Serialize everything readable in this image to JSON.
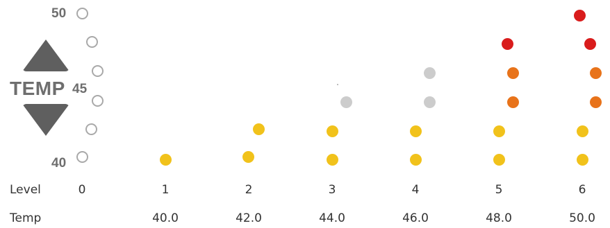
{
  "scale": {
    "top_label": "50",
    "mid_label": "45",
    "bottom_label": "40"
  },
  "temp_control": {
    "label": "TEMP",
    "up_icon": "triangle-up-icon",
    "down_icon": "triangle-down-icon",
    "arrow_color": "#5f5f5f"
  },
  "legend_rings": {
    "count": 6,
    "color": "#a9a9a9"
  },
  "colors": {
    "yellow": "#f1c21b",
    "gray": "#cccccc",
    "orange": "#e8731a",
    "red": "#d91c1c"
  },
  "level_row": {
    "label": "Level",
    "values": [
      "0",
      "1",
      "2",
      "3",
      "4",
      "5",
      "6"
    ]
  },
  "temp_row": {
    "label": "Temp",
    "values": [
      "",
      "40.0",
      "42.0",
      "44.0",
      "46.0",
      "48.0",
      "50.0"
    ]
  },
  "columns": [
    {
      "level": "0",
      "dots": []
    },
    {
      "level": "1",
      "dots": [
        "yellow"
      ]
    },
    {
      "level": "2",
      "dots": [
        "yellow",
        "yellow"
      ]
    },
    {
      "level": "3",
      "dots": [
        "yellow",
        "yellow",
        "gray"
      ]
    },
    {
      "level": "4",
      "dots": [
        "yellow",
        "yellow",
        "gray",
        "gray"
      ]
    },
    {
      "level": "5",
      "dots": [
        "yellow",
        "yellow",
        "orange",
        "orange",
        "red"
      ]
    },
    {
      "level": "6",
      "dots": [
        "yellow",
        "yellow",
        "orange",
        "orange",
        "red",
        "red"
      ]
    }
  ]
}
